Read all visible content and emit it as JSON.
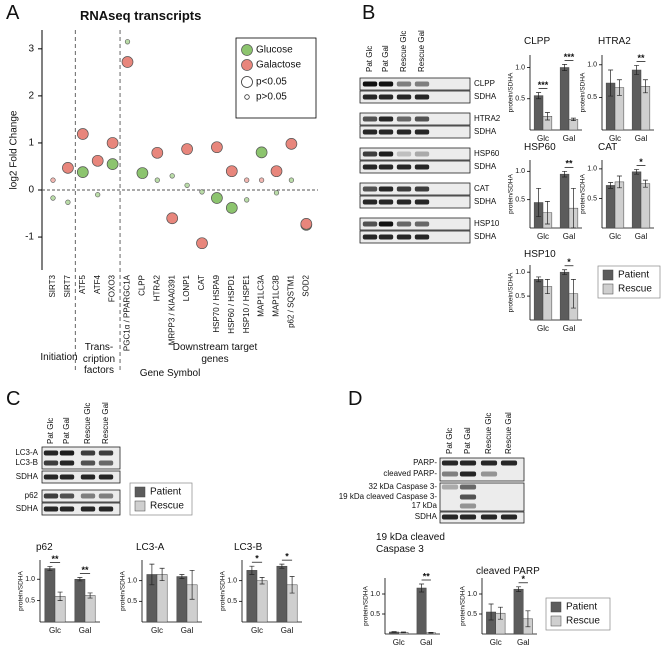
{
  "panels": [
    "A",
    "B",
    "C",
    "D"
  ],
  "chart_data": [
    {
      "type": "scatter",
      "title": "RNAseq transcripts",
      "xlabel": "Gene Symbol",
      "ylabel": "log2 Fold Change",
      "categories": [
        "SIRT3",
        "SIRT7",
        "ATF5",
        "ATF4",
        "FOXO3",
        "PGC1α / PPARGC1A",
        "CLPP",
        "HTRA2",
        "MRPP3 / KIAA0391",
        "LONP1",
        "CAT",
        "HSP70 / HSPA9",
        "HSP60 / HSPD1",
        "HSP10 / HSPE1",
        "MAP1LC3A",
        "MAP1LC3B",
        "p62 / SQSTM1",
        "SOD2"
      ],
      "series": [
        {
          "name": "Glucose",
          "color": "#8cc46e",
          "values": [
            -0.17,
            -0.26,
            0.38,
            -0.1,
            0.55,
            3.15,
            0.36,
            0.21,
            0.3,
            0.1,
            -0.04,
            -0.17,
            -0.38,
            -0.21,
            0.8,
            -0.06,
            0.21,
            -0.74
          ],
          "significant": [
            false,
            false,
            true,
            false,
            true,
            false,
            true,
            false,
            false,
            false,
            false,
            true,
            true,
            false,
            true,
            false,
            false,
            true
          ]
        },
        {
          "name": "Galactose",
          "color": "#e8867c",
          "values": [
            0.21,
            0.47,
            1.19,
            0.62,
            1.0,
            2.72,
            null,
            0.79,
            -0.6,
            0.87,
            -1.13,
            0.91,
            0.4,
            0.21,
            0.21,
            0.4,
            0.98,
            -0.72
          ],
          "significant": [
            false,
            true,
            true,
            true,
            true,
            true,
            null,
            true,
            true,
            true,
            true,
            true,
            true,
            false,
            false,
            true,
            true,
            true
          ]
        }
      ],
      "size_legend": [
        "p<0.05",
        "p>0.05"
      ],
      "groups": [
        "Initiation",
        "Trans-cription factors",
        "Downstream target genes"
      ],
      "ylim": [
        -1.7,
        3.4
      ],
      "yticks": [
        -1,
        0,
        1,
        2,
        3
      ]
    },
    {
      "type": "bar",
      "title": "CLPP",
      "ylabel": "protein/SDHA",
      "categories": [
        "Glc",
        "Gal"
      ],
      "series": [
        {
          "color": "#5c5c5c",
          "values": [
            0.55,
            1.0
          ],
          "errors": [
            0.05,
            0.05
          ]
        },
        {
          "color": "#cfcfcf",
          "values": [
            0.22,
            0.17
          ],
          "errors": [
            0.06,
            0.02
          ]
        }
      ],
      "significance": [
        "***",
        "***"
      ],
      "ylim": [
        0,
        1.2
      ],
      "yticks": [
        0.5,
        {
          "value": 1,
          "label": "1.0"
        }
      ]
    },
    {
      "type": "bar",
      "title": "HTRA2",
      "ylabel": "protein/SDHA",
      "categories": [
        "Glc",
        "Gal"
      ],
      "series": [
        {
          "color": "#5c5c5c",
          "values": [
            0.72,
            0.92
          ],
          "errors": [
            0.2,
            0.07
          ]
        },
        {
          "color": "#cfcfcf",
          "values": [
            0.65,
            0.67
          ],
          "errors": [
            0.12,
            0.1
          ]
        }
      ],
      "significance": [
        null,
        "**"
      ],
      "ylim": [
        0,
        1.15
      ],
      "yticks": [
        0.5,
        {
          "value": 1,
          "label": "1.0"
        }
      ]
    },
    {
      "type": "bar",
      "title": "HSP60",
      "ylabel": "protein/SDHA",
      "categories": [
        "Glc",
        "Gal"
      ],
      "series": [
        {
          "color": "#5c5c5c",
          "values": [
            0.45,
            0.95
          ],
          "errors": [
            0.25,
            0.05
          ]
        },
        {
          "color": "#cfcfcf",
          "values": [
            0.27,
            0.35
          ],
          "errors": [
            0.2,
            0.35
          ]
        }
      ],
      "significance": [
        null,
        "**"
      ],
      "ylim": [
        0,
        1.2
      ],
      "yticks": [
        0.5,
        {
          "value": 1,
          "label": "1.0"
        }
      ]
    },
    {
      "type": "bar",
      "title": "CAT",
      "ylabel": "protein/SDHA",
      "categories": [
        "Glc",
        "Gal"
      ],
      "series": [
        {
          "color": "#5c5c5c",
          "values": [
            0.72,
            0.95
          ],
          "errors": [
            0.05,
            0.04
          ]
        },
        {
          "color": "#cfcfcf",
          "values": [
            0.78,
            0.75
          ],
          "errors": [
            0.1,
            0.06
          ]
        }
      ],
      "significance": [
        null,
        "*"
      ],
      "ylim": [
        0,
        1.15
      ],
      "yticks": [
        0.5,
        {
          "value": 1,
          "label": "1.0"
        }
      ]
    },
    {
      "type": "bar",
      "title": "HSP10",
      "ylabel": "protein/SDHA",
      "categories": [
        "Glc",
        "Gal"
      ],
      "series": [
        {
          "name": "Patient",
          "color": "#5c5c5c",
          "values": [
            0.85,
            1.0
          ],
          "errors": [
            0.05,
            0.05
          ]
        },
        {
          "name": "Rescue",
          "color": "#cfcfcf",
          "values": [
            0.7,
            0.55
          ],
          "errors": [
            0.15,
            0.3
          ]
        }
      ],
      "significance": [
        null,
        "*"
      ],
      "ylim": [
        0,
        1.15
      ],
      "yticks": [
        0.5,
        {
          "value": 1,
          "label": "1.0"
        }
      ]
    },
    {
      "type": "bar",
      "title": "p62",
      "ylabel": "protein/SDHA",
      "categories": [
        "Glc",
        "Gal"
      ],
      "series": [
        {
          "name": "Patient",
          "color": "#5c5c5c",
          "values": [
            1.25,
            1.0
          ],
          "errors": [
            0.05,
            0.04
          ]
        },
        {
          "name": "Rescue",
          "color": "#cfcfcf",
          "values": [
            0.6,
            0.62
          ],
          "errors": [
            0.1,
            0.06
          ]
        }
      ],
      "significance": [
        "**",
        "**"
      ],
      "ylim": [
        0,
        1.45
      ],
      "yticks": [
        0.5,
        {
          "value": 1,
          "label": "1.0"
        }
      ]
    },
    {
      "type": "bar",
      "title": "LC3-A",
      "ylabel": "protein/SDHA",
      "categories": [
        "Glc",
        "Gal"
      ],
      "series": [
        {
          "color": "#5c5c5c",
          "values": [
            1.15,
            1.1
          ],
          "errors": [
            0.25,
            0.05
          ]
        },
        {
          "color": "#cfcfcf",
          "values": [
            1.15,
            0.9
          ],
          "errors": [
            0.15,
            0.35
          ]
        }
      ],
      "significance": [
        null,
        null
      ],
      "ylim": [
        0,
        1.5
      ],
      "yticks": [
        0.5,
        {
          "value": 1,
          "label": "1.0"
        }
      ]
    },
    {
      "type": "bar",
      "title": "LC3-B",
      "ylabel": "protein/SDHA",
      "categories": [
        "Glc",
        "Gal"
      ],
      "series": [
        {
          "color": "#5c5c5c",
          "values": [
            1.25,
            1.35
          ],
          "errors": [
            0.1,
            0.05
          ]
        },
        {
          "color": "#cfcfcf",
          "values": [
            1.0,
            0.9
          ],
          "errors": [
            0.08,
            0.2
          ]
        }
      ],
      "significance": [
        "*",
        "*"
      ],
      "ylim": [
        0,
        1.5
      ],
      "yticks": [
        0.5,
        {
          "value": 1,
          "label": "1.0"
        }
      ]
    },
    {
      "type": "bar",
      "title": "19 kDa cleaved Caspase 3",
      "ylabel": "protein/SDHA",
      "categories": [
        "Glc",
        "Gal"
      ],
      "series": [
        {
          "color": "#5c5c5c",
          "values": [
            0.05,
            1.15
          ],
          "errors": [
            0.01,
            0.1
          ]
        },
        {
          "color": "#cfcfcf",
          "values": [
            0.04,
            0.03
          ],
          "errors": [
            0.01,
            0.01
          ]
        }
      ],
      "significance": [
        null,
        "**"
      ],
      "ylim": [
        0,
        1.4
      ],
      "yticks": [
        0.5,
        {
          "value": 1,
          "label": "1.0"
        }
      ]
    },
    {
      "type": "bar",
      "title": "cleaved PARP",
      "ylabel": "protein/SDHA",
      "categories": [
        "Glc",
        "Gal"
      ],
      "series": [
        {
          "name": "Patient",
          "color": "#5c5c5c",
          "values": [
            0.55,
            1.12
          ],
          "errors": [
            0.2,
            0.06
          ]
        },
        {
          "name": "Rescue",
          "color": "#cfcfcf",
          "values": [
            0.52,
            0.38
          ],
          "errors": [
            0.15,
            0.2
          ]
        }
      ],
      "significance": [
        null,
        "*"
      ],
      "ylim": [
        0,
        1.4
      ],
      "yticks": [
        0.5,
        {
          "value": 1,
          "label": "1.0"
        }
      ]
    }
  ],
  "blots": [
    {
      "lanes": [
        "Pat Glc",
        "Pat Gal",
        "Rescue Glc",
        "Rescue Gal"
      ],
      "rows": [
        "CLPP",
        "SDHA",
        "HTRA2",
        "SDHA",
        "HSP60",
        "SDHA",
        "CAT",
        "SDHA",
        "HSP10",
        "SDHA"
      ]
    },
    {
      "lanes": [
        "Pat Glc",
        "Pat Gal",
        "Rescue Glc",
        "Rescue Gal"
      ],
      "rows": [
        "LC3-A",
        "LC3-B",
        "SDHA",
        "p62",
        "SDHA"
      ]
    },
    {
      "lanes": [
        "Pat Glc",
        "Pat Gal",
        "Rescue Glc",
        "Rescue Gal"
      ],
      "rows": [
        "PARP-",
        "cleaved PARP-",
        "32 kDa Caspase 3-",
        "19 kDa cleaved Caspase 3-",
        "17 kDa",
        "SDHA"
      ]
    }
  ]
}
